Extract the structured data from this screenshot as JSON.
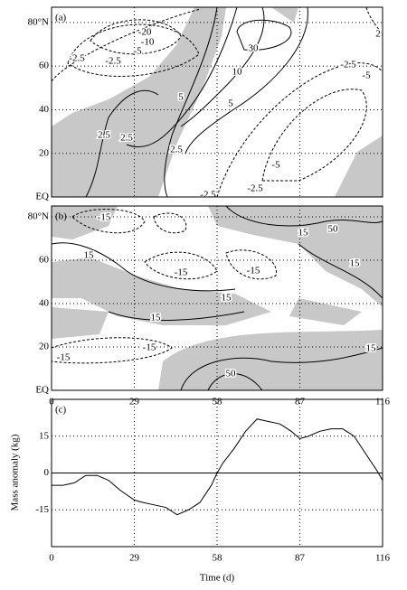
{
  "chart_data": [
    {
      "type": "contour",
      "label": "(a)",
      "xlim": [
        0,
        116
      ],
      "xticks": [
        0,
        29,
        58,
        87,
        116
      ],
      "ylim": [
        0,
        87
      ],
      "yticks": [
        {
          "value": 0,
          "label": "EQ"
        },
        20,
        40,
        60,
        {
          "value": 80,
          "label": "80°N"
        }
      ],
      "contour_labels": [
        30,
        10,
        5,
        5,
        2.5,
        2.5,
        2.5,
        -20,
        -10,
        -5,
        -2.5,
        -2.5,
        -2.5,
        -5,
        -5,
        -2.5,
        -2.5,
        2
      ]
    },
    {
      "type": "contour",
      "label": "(b)",
      "xlim": [
        0,
        116
      ],
      "xticks": [
        0,
        29,
        58,
        87,
        116
      ],
      "ylim": [
        0,
        85
      ],
      "yticks": [
        {
          "value": 0,
          "label": "EQ"
        },
        20,
        40,
        60,
        {
          "value": 80,
          "label": "80°N"
        }
      ],
      "contour_labels": [
        -15,
        15,
        -15,
        15,
        50,
        -15,
        15,
        15,
        15,
        -15,
        -15,
        50,
        15
      ]
    },
    {
      "type": "line",
      "label": "(c)",
      "y_label": "Mass anomaly (kg)",
      "x_label": "Time (d)",
      "xlim": [
        0,
        116
      ],
      "xticks": [
        0,
        29,
        58,
        87,
        116
      ],
      "ylim": [
        -30,
        30
      ],
      "yticks": [
        -15,
        0,
        15
      ],
      "x": [
        0,
        4,
        8,
        12,
        16,
        20,
        24,
        29,
        32,
        36,
        40,
        44,
        48,
        52,
        56,
        58,
        60,
        64,
        68,
        72,
        76,
        80,
        84,
        87,
        90,
        94,
        98,
        102,
        106,
        110,
        114,
        116
      ],
      "values": [
        -5,
        -5,
        -4,
        -1,
        -1,
        -3,
        -7,
        -11,
        -12,
        -13,
        -14,
        -17,
        -15,
        -12,
        -5,
        0,
        4,
        10,
        17,
        22,
        21,
        20,
        17,
        14,
        15,
        17,
        18,
        18,
        15,
        8,
        1,
        -3
      ],
      "color": "#000000"
    }
  ]
}
